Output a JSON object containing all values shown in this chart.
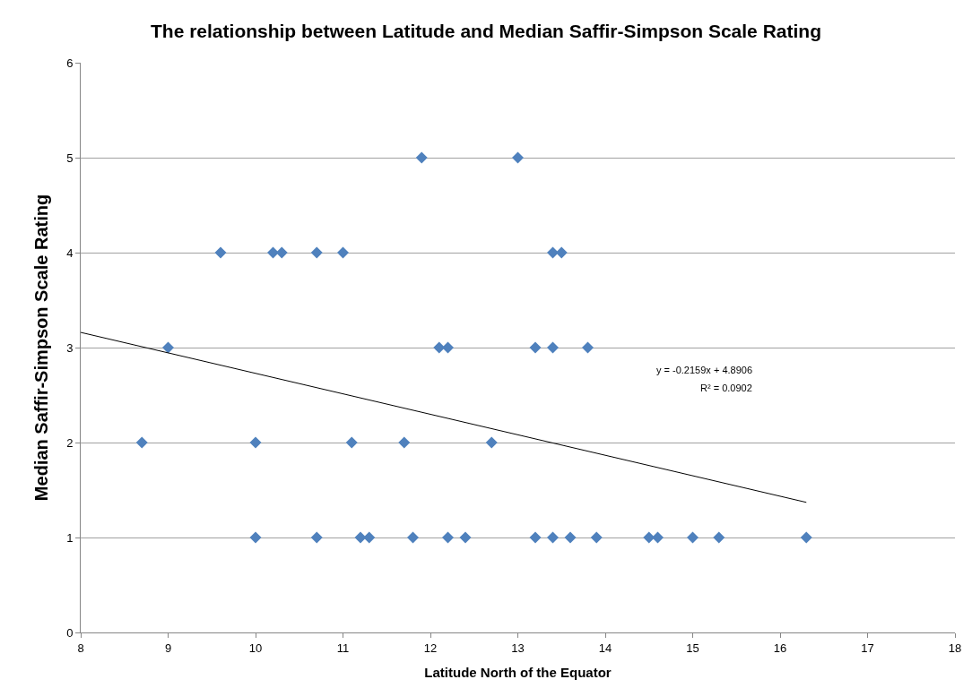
{
  "chart_data": {
    "type": "scatter",
    "title": "The relationship between Latitude and Median Saffir-Simpson Scale Rating",
    "xlabel": "Latitude North of the Equator",
    "ylabel": "Median Saffir-Simpson Scale Rating",
    "series": [
      {
        "color": "#4f81bd",
        "marker": "diamond",
        "x": [
          11.9,
          13.0,
          9.6,
          10.2,
          10.3,
          10.7,
          11.0,
          13.4,
          13.5,
          9.0,
          12.1,
          12.2,
          13.2,
          13.4,
          13.8,
          8.7,
          10.0,
          11.1,
          11.7,
          12.7,
          10.0,
          10.7,
          11.2,
          11.3,
          11.8,
          12.2,
          12.4,
          13.2,
          13.4,
          13.6,
          13.9,
          14.5,
          14.6,
          15.0,
          15.3,
          16.3
        ],
        "values": [
          5,
          5,
          4,
          4,
          4,
          4,
          4,
          4,
          4,
          3,
          3,
          3,
          3,
          3,
          3,
          2,
          2,
          2,
          2,
          2,
          1,
          1,
          1,
          1,
          1,
          1,
          1,
          1,
          1,
          1,
          1,
          1,
          1,
          1,
          1,
          1
        ]
      },
      {
        "type": "line",
        "color": "#000000",
        "marker": "none",
        "x": [
          8,
          16.3
        ],
        "values": [
          3.16,
          1.37
        ]
      }
    ],
    "annotations": [
      "y = -0.2159x + 4.8906",
      "R² = 0.0902"
    ],
    "xlim": [
      8,
      18
    ],
    "xticks": [
      8,
      9,
      10,
      11,
      12,
      13,
      14,
      15,
      16,
      17,
      18
    ],
    "ylim": [
      0,
      6
    ],
    "yticks": [
      0,
      1,
      2,
      3,
      4,
      5,
      6
    ],
    "grid": "y"
  }
}
